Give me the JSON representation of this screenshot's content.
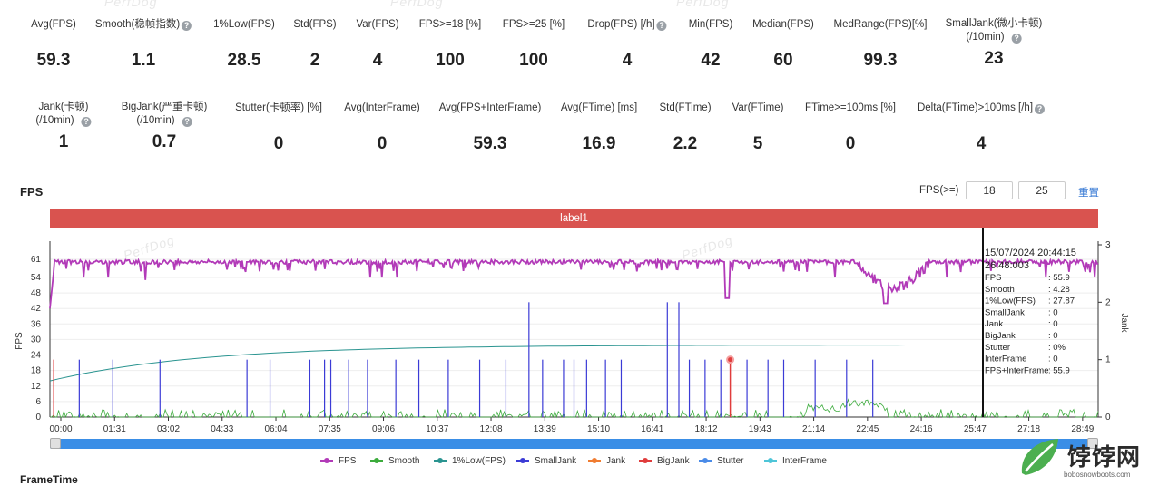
{
  "watermarks": [
    "PerfDog",
    "PerfDog",
    "PerfDog",
    "PerfDog",
    "PerfDog"
  ],
  "stats_row1": [
    {
      "label": "Avg(FPS)",
      "value": "59.3",
      "help": false
    },
    {
      "label": "Smooth(稳帧指数)",
      "value": "1.1",
      "help": true
    },
    {
      "label": "1%Low(FPS)",
      "value": "28.5",
      "help": false
    },
    {
      "label": "Std(FPS)",
      "value": "2",
      "help": false
    },
    {
      "label": "Var(FPS)",
      "value": "4",
      "help": false
    },
    {
      "label": "FPS>=18 [%]",
      "value": "100",
      "help": false
    },
    {
      "label": "FPS>=25 [%]",
      "value": "100",
      "help": false
    },
    {
      "label": "Drop(FPS) [/h]",
      "value": "4",
      "help": true
    },
    {
      "label": "Min(FPS)",
      "value": "42",
      "help": false
    },
    {
      "label": "Median(FPS)",
      "value": "60",
      "help": false
    },
    {
      "label": "MedRange(FPS)[%]",
      "value": "99.3",
      "help": false
    },
    {
      "label": "SmallJank(微小卡顿)",
      "label2": "(/10min)",
      "value": "23",
      "help": true
    }
  ],
  "stats_row2": [
    {
      "label": "Jank(卡顿)",
      "label2": "(/10min)",
      "value": "1",
      "help": true
    },
    {
      "label": "BigJank(严重卡顿)",
      "label2": "(/10min)",
      "value": "0.7",
      "help": true
    },
    {
      "label": "Stutter(卡顿率) [%]",
      "value": "0",
      "help": false
    },
    {
      "label": "Avg(InterFrame)",
      "value": "0",
      "help": false
    },
    {
      "label": "Avg(FPS+InterFrame)",
      "value": "59.3",
      "help": false
    },
    {
      "label": "Avg(FTime) [ms]",
      "value": "16.9",
      "help": false
    },
    {
      "label": "Std(FTime)",
      "value": "2.2",
      "help": false
    },
    {
      "label": "Var(FTime)",
      "value": "5",
      "help": false
    },
    {
      "label": "FTime>=100ms [%]",
      "value": "0",
      "help": false
    },
    {
      "label": "Delta(FTime)>100ms [/h]",
      "value": "4",
      "help": true
    }
  ],
  "fps_section": {
    "title": "FPS",
    "threshold_label": "FPS(>=)",
    "threshold1": "18",
    "threshold2": "25",
    "reset_label": "重置",
    "label_bar": "label1"
  },
  "chart_data": {
    "type": "line",
    "ylabel": "FPS",
    "y2label": "Jank",
    "y_ticks": [
      "0",
      "6",
      "12",
      "18",
      "24",
      "30",
      "36",
      "42",
      "48",
      "54",
      "61"
    ],
    "y2_ticks": [
      "0",
      "1",
      "2",
      "3"
    ],
    "x_ticks": [
      "00:00",
      "01:31",
      "03:02",
      "04:33",
      "06:04",
      "07:35",
      "09:06",
      "10:37",
      "12:08",
      "13:39",
      "15:10",
      "16:41",
      "18:12",
      "19:43",
      "21:14",
      "22:45",
      "24:16",
      "25:47",
      "27:18",
      "28:49"
    ],
    "ylim": [
      0,
      61
    ],
    "y2lim": [
      0,
      3
    ],
    "series": [
      {
        "name": "FPS",
        "color": "#b23ab8",
        "description_values": {
          "typical": 60,
          "min": 42,
          "dip_region_start": "22:00",
          "dip_region_end": "24:00",
          "dip_low": 42
        }
      },
      {
        "name": "Smooth",
        "color": "#3cab3c",
        "typical": 1,
        "max": 7.5
      },
      {
        "name": "1%Low(FPS)",
        "color": "#2a9490",
        "start": 14,
        "end": 27.9
      },
      {
        "name": "SmallJank",
        "color": "#3b3bd6",
        "events": 23,
        "typical_height": 1,
        "max_height": 2
      },
      {
        "name": "Jank",
        "color": "#f07c30",
        "events": 1
      },
      {
        "name": "BigJank",
        "color": "#e03c3c",
        "events": 1,
        "at": "19:25",
        "height": 1
      },
      {
        "name": "Stutter",
        "color": "#4a8be8"
      },
      {
        "name": "InterFrame",
        "color": "#4ec5d8"
      }
    ]
  },
  "tooltip": {
    "datetime": "15/07/2024 20:44:15",
    "elapsed": "26:48:003",
    "rows": [
      {
        "k": "FPS",
        "v": ": 55.9"
      },
      {
        "k": "Smooth",
        "v": ": 4.28"
      },
      {
        "k": "1%Low(FPS)",
        "v": ": 27.87"
      },
      {
        "k": "SmallJank",
        "v": ": 0"
      },
      {
        "k": "Jank",
        "v": ": 0"
      },
      {
        "k": "BigJank",
        "v": ": 0"
      },
      {
        "k": "Stutter",
        "v": ": 0%"
      },
      {
        "k": "InterFrame",
        "v": ": 0"
      },
      {
        "k": "FPS+InterFrame",
        "v": ": 55.9"
      }
    ]
  },
  "legend": [
    {
      "name": "FPS",
      "color": "#b23ab8"
    },
    {
      "name": "Smooth",
      "color": "#3cab3c"
    },
    {
      "name": "1%Low(FPS)",
      "color": "#2a9490"
    },
    {
      "name": "SmallJank",
      "color": "#3b3bd6"
    },
    {
      "name": "Jank",
      "color": "#f07c30"
    },
    {
      "name": "BigJank",
      "color": "#e03c3c"
    },
    {
      "name": "Stutter",
      "color": "#4a8be8"
    },
    {
      "name": "InterFrame",
      "color": "#4ec5d8"
    }
  ],
  "frame_time_title": "FrameTime",
  "brand": {
    "name": "饽饽网",
    "sub": "bobosnowboots.com"
  }
}
